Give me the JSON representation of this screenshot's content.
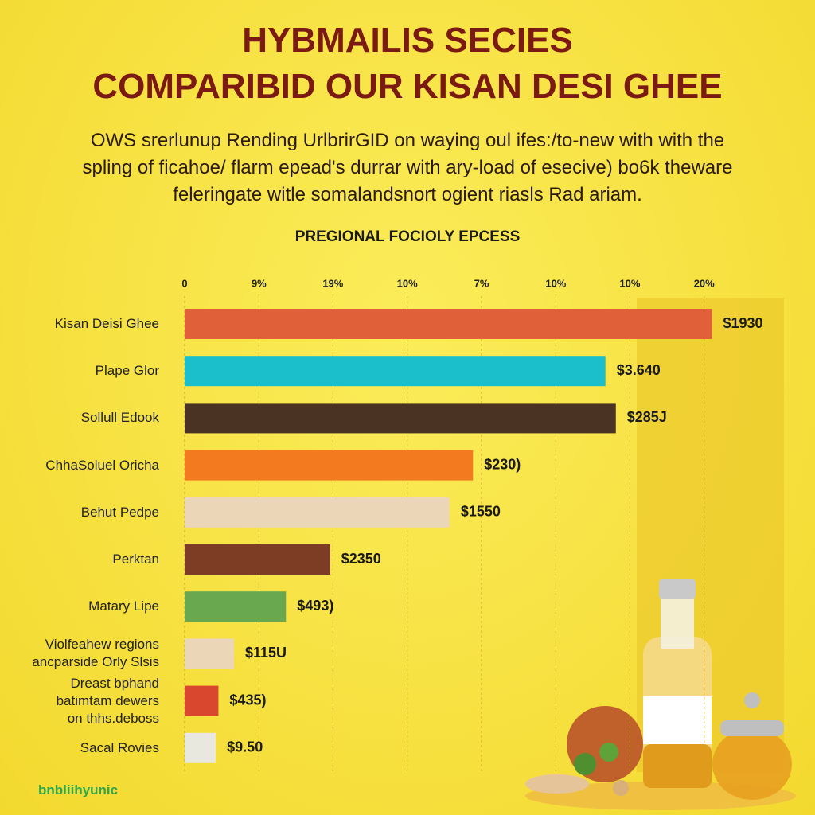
{
  "chart_data": {
    "type": "bar",
    "orientation": "horizontal",
    "title": "HYBMAILIS SECIES\nCOMPARIBID OUR KISAN DESI GHEE",
    "subtitle": "OWS srerlunup Rending UrlbrirGID on waying oul ifes:/to-new with with the\nspling of ficahoe/ flarm epead's durrar with ary-load of  esecive) bo6k theware\nfeleringate witle somalandsnort ogient riasls Rad ariam.",
    "chart_title": "PREGIONAL FOCIOLY EPCESS",
    "categories": [
      "Kisan Deisi Ghee",
      "Plape Glor",
      "Sollull Edook",
      "ChhaSoluel Oricha",
      "Behut Pedpe",
      "Perktan",
      "Matary Lipe",
      "Violfeahew regions\nancparside Orly Slsis",
      "Dreast bphand\nbatimtam dewers\non thhs.deboss",
      "Sacal Rovies"
    ],
    "values": [
      20.3,
      16.2,
      16.6,
      11.1,
      10.2,
      5.6,
      3.9,
      1.9,
      1.3,
      1.2
    ],
    "price_labels": [
      "$1930",
      "$3.640",
      "$285J",
      "$230)",
      "$1550",
      "$2350",
      "$493)",
      "$115U",
      "$435)",
      "$9.50"
    ],
    "colors": [
      "#e0603a",
      "#1bbfcc",
      "#4a3322",
      "#f47a20",
      "#ecd6b8",
      "#7d3d25",
      "#6aa84f",
      "#ecd6b8",
      "#d9472e",
      "#e9e8df"
    ],
    "xlim": [
      0,
      22
    ],
    "xticks": [
      {
        "value": 0,
        "label": "0"
      },
      {
        "value": 2.86,
        "label": "9%"
      },
      {
        "value": 5.71,
        "label": "19%"
      },
      {
        "value": 8.57,
        "label": "10%"
      },
      {
        "value": 11.43,
        "label": "7%"
      },
      {
        "value": 14.29,
        "label": "10%"
      },
      {
        "value": 17.14,
        "label": "10%"
      },
      {
        "value": 20,
        "label": "20%"
      }
    ],
    "grid": true
  },
  "brand": "bnbliihyunic"
}
